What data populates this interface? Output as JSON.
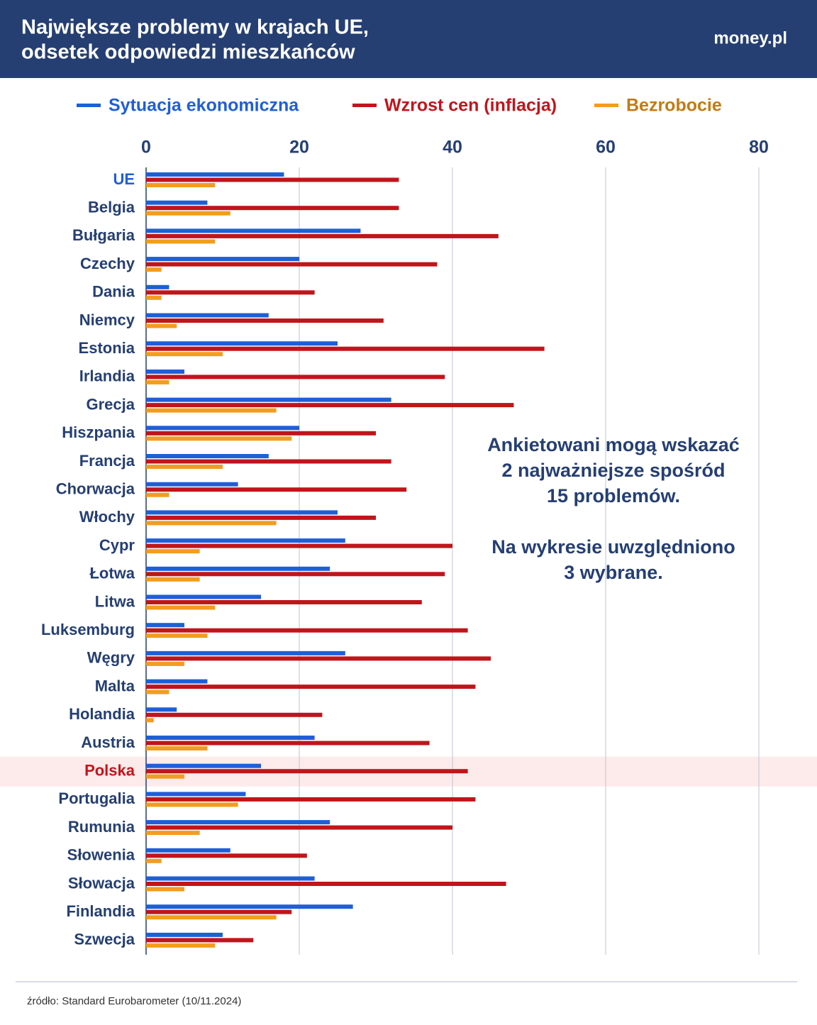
{
  "header": {
    "title_lines": [
      "Największe problemy w krajach UE,",
      "odsetek odpowiedzi mieszkańców"
    ],
    "logo": "money.pl"
  },
  "chart_data": {
    "type": "bar",
    "orientation": "horizontal",
    "categories": [
      "UE",
      "Belgia",
      "Bułgaria",
      "Czechy",
      "Dania",
      "Niemcy",
      "Estonia",
      "Irlandia",
      "Grecja",
      "Hiszpania",
      "Francja",
      "Chorwacja",
      "Włochy",
      "Cypr",
      "Łotwa",
      "Litwa",
      "Luksemburg",
      "Węgry",
      "Malta",
      "Holandia",
      "Austria",
      "Polska",
      "Portugalia",
      "Rumunia",
      "Słowenia",
      "Słowacja",
      "Finlandia",
      "Szwecja"
    ],
    "category_colors": [
      "#1f5fd6",
      "#253f73",
      "#253f73",
      "#253f73",
      "#253f73",
      "#253f73",
      "#253f73",
      "#253f73",
      "#253f73",
      "#253f73",
      "#253f73",
      "#253f73",
      "#253f73",
      "#253f73",
      "#253f73",
      "#253f73",
      "#253f73",
      "#253f73",
      "#253f73",
      "#253f73",
      "#253f73",
      "#c0151b",
      "#253f73",
      "#253f73",
      "#253f73",
      "#253f73",
      "#253f73",
      "#253f73"
    ],
    "highlight_band": {
      "index": 21,
      "color": "#fdeaea"
    },
    "series": [
      {
        "name": "Sytuacja ekonomiczna",
        "color": "#1f5fd6",
        "legend_text_color": "#1f5fd6",
        "values": [
          18,
          8,
          28,
          20,
          3,
          16,
          25,
          5,
          32,
          20,
          16,
          12,
          25,
          26,
          24,
          15,
          5,
          26,
          8,
          4,
          22,
          15,
          13,
          24,
          11,
          22,
          27,
          10
        ]
      },
      {
        "name": "Wzrost cen (inflacja)",
        "color": "#c0151b",
        "legend_text_color": "#c0151b",
        "values": [
          33,
          33,
          46,
          38,
          22,
          31,
          52,
          39,
          48,
          30,
          32,
          34,
          30,
          40,
          39,
          36,
          42,
          45,
          43,
          23,
          37,
          42,
          43,
          40,
          21,
          47,
          19,
          14
        ]
      },
      {
        "name": "Bezrobocie",
        "color": "#f39c1f",
        "legend_text_color": "#c47a12",
        "values": [
          9,
          11,
          9,
          2,
          2,
          4,
          10,
          3,
          17,
          19,
          10,
          3,
          17,
          7,
          7,
          9,
          8,
          5,
          3,
          1,
          8,
          5,
          12,
          7,
          2,
          5,
          17,
          9
        ]
      }
    ],
    "xlim": [
      0,
      80
    ],
    "xticks": [
      0,
      20,
      40,
      60,
      80
    ],
    "grid": true,
    "annotation": [
      [
        "Ankietowani mogą wskazać",
        "2 najważniejsze spośród",
        "15 problemów."
      ],
      [
        "Na wykresie uwzględniono",
        "3 wybrane."
      ]
    ],
    "source": "źródło: Standard Eurobarometer (10/11.2024)"
  }
}
